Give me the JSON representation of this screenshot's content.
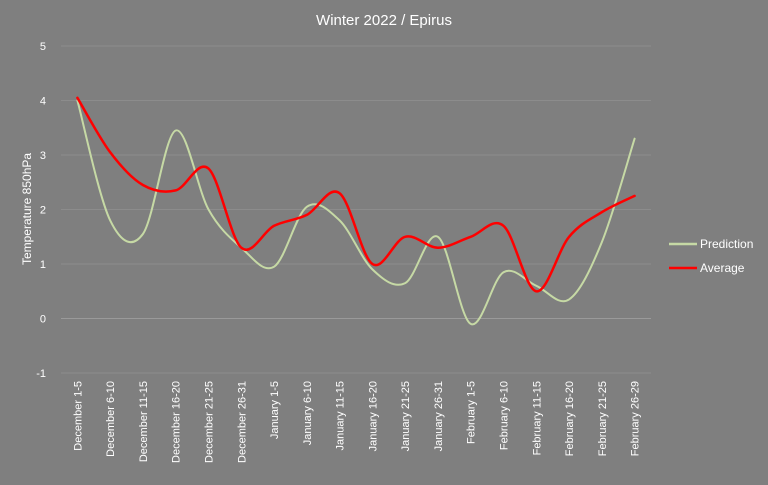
{
  "chart_data": {
    "type": "line",
    "title": "Winter 2022 / Epirus",
    "ylabel": "Temperature  850hPa",
    "xlabel": "",
    "ylim": [
      -1,
      5
    ],
    "yticks": [
      -1,
      0,
      1,
      2,
      3,
      4,
      5
    ],
    "categories": [
      "December 1-5",
      "December 6-10",
      "December 11-15",
      "December 16-20",
      "December 21-25",
      "December 26-31",
      "January 1-5",
      "January 6-10",
      "January 11-15",
      "January 16-20",
      "January 21-25",
      "January 26-31",
      "February 1-5",
      "February 6-10",
      "February 11-15",
      "February 16-20",
      "February 21-25",
      "February 26-29"
    ],
    "series": [
      {
        "name": "Prediction",
        "color": "#c6d9a5",
        "values": [
          4.0,
          1.8,
          1.55,
          3.45,
          2.0,
          1.3,
          0.95,
          2.05,
          1.8,
          0.9,
          0.65,
          1.5,
          -0.1,
          0.85,
          0.6,
          0.35,
          1.4,
          3.3
        ]
      },
      {
        "name": "Average",
        "color": "#ff0000",
        "values": [
          4.05,
          3.05,
          2.45,
          2.35,
          2.75,
          1.3,
          1.7,
          1.9,
          2.3,
          1.0,
          1.5,
          1.3,
          1.5,
          1.7,
          0.5,
          1.5,
          1.95,
          2.25
        ]
      }
    ],
    "grid": true,
    "legend_position": "right"
  }
}
